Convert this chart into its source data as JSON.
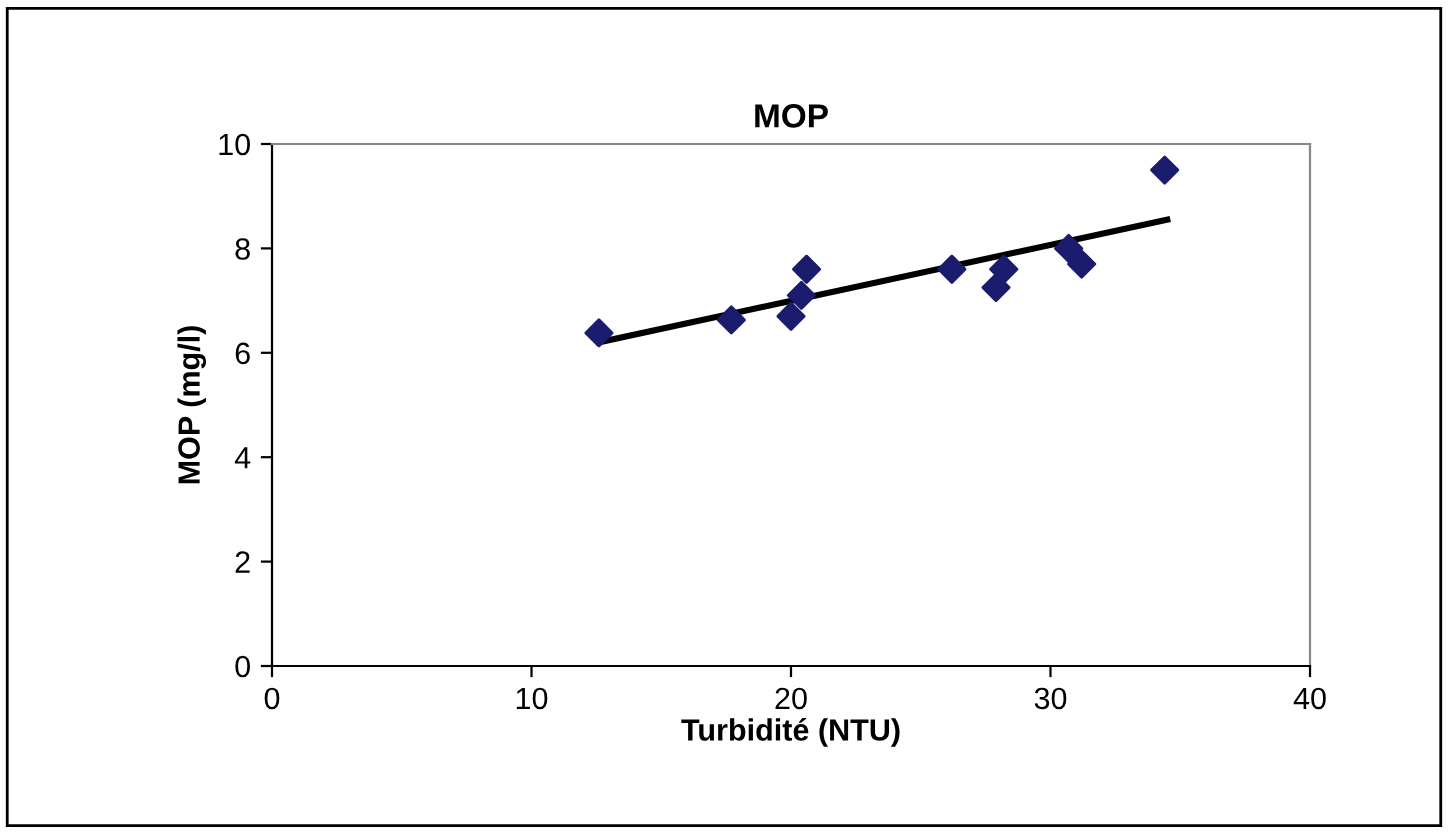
{
  "chart_data": {
    "type": "scatter",
    "title": "MOP",
    "xlabel": "Turbidité (NTU)",
    "ylabel": "MOP (mg/l)",
    "xlim": [
      0,
      40
    ],
    "xticks": [
      0,
      10,
      20,
      30,
      40
    ],
    "ylim": [
      0,
      10
    ],
    "yticks": [
      0,
      2,
      4,
      6,
      8,
      10
    ],
    "grid": false,
    "legend": false,
    "marker": "diamond",
    "series": [
      {
        "color": "#1c1c6e",
        "x": [
          12.6,
          17.7,
          20.0,
          20.4,
          20.6,
          26.2,
          27.9,
          28.2,
          30.7,
          31.2,
          34.4
        ],
        "values": [
          6.38,
          6.63,
          6.7,
          7.1,
          7.6,
          7.6,
          7.25,
          7.6,
          8.0,
          7.7,
          9.5
        ]
      },
      {
        "type": "line",
        "color": "#000000",
        "x": [
          12.6,
          34.5
        ],
        "values": [
          6.2,
          8.55
        ],
        "marker": "none",
        "line_style": "solid"
      }
    ]
  }
}
